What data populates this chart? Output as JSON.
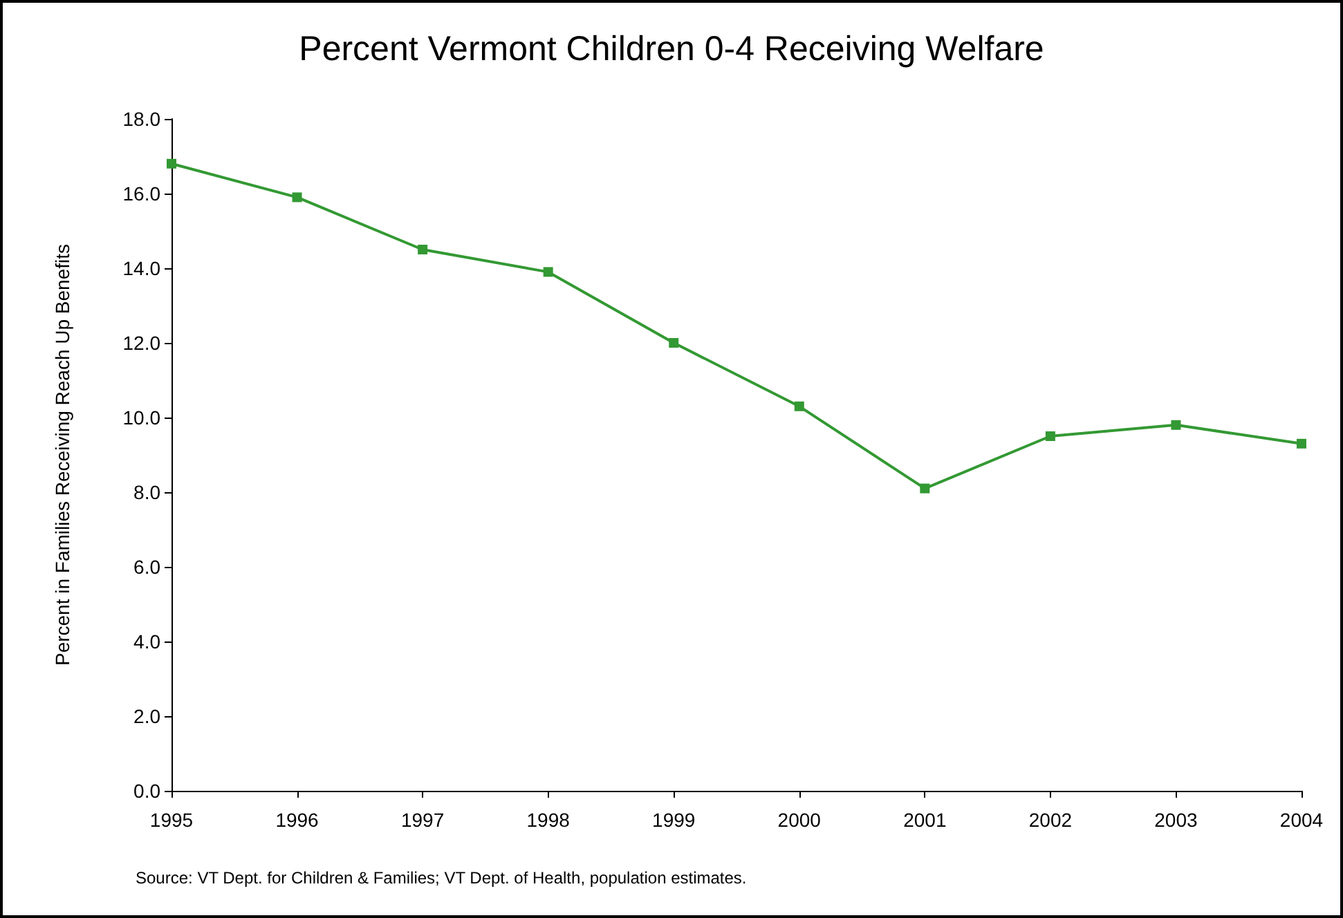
{
  "chart_data": {
    "type": "line",
    "title": "Percent Vermont Children 0-4 Receiving Welfare",
    "ylabel": "Percent in Families Receiving Reach Up Benefits",
    "annotations": [
      "Source: VT Dept. for Children & Families; VT Dept. of Health, population estimates."
    ],
    "x": [
      1995,
      1996,
      1997,
      1998,
      1999,
      2000,
      2001,
      2002,
      2003,
      2004
    ],
    "series": [
      {
        "color": "#339933",
        "values": [
          16.8,
          15.9,
          14.5,
          13.9,
          12.0,
          10.3,
          8.1,
          9.5,
          9.8,
          9.3
        ]
      }
    ],
    "xlim": [
      1995,
      2004
    ],
    "xticks": [
      1995,
      1996,
      1997,
      1998,
      1999,
      2000,
      2001,
      2002,
      2003,
      2004
    ],
    "ylim": [
      0,
      18
    ],
    "yticks": [
      {
        "value": 0,
        "label": "0.0"
      },
      {
        "value": 2,
        "label": "2.0"
      },
      {
        "value": 4,
        "label": "4.0"
      },
      {
        "value": 6,
        "label": "6.0"
      },
      {
        "value": 8,
        "label": "8.0"
      },
      {
        "value": 10,
        "label": "10.0"
      },
      {
        "value": 12,
        "label": "12.0"
      },
      {
        "value": 14,
        "label": "14.0"
      },
      {
        "value": 16,
        "label": "16.0"
      },
      {
        "value": 18,
        "label": "18.0"
      }
    ],
    "grid": false,
    "marker": "square",
    "line_style": "solid"
  }
}
